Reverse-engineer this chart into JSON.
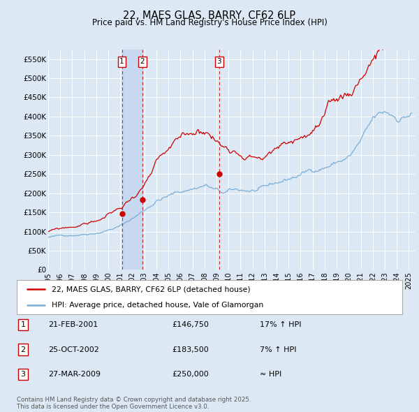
{
  "title": "22, MAES GLAS, BARRY, CF62 6LP",
  "subtitle": "Price paid vs. HM Land Registry's House Price Index (HPI)",
  "bg_color": "#dce9f5",
  "plot_bg_color": "#dce9f5",
  "grid_color": "#ffffff",
  "red_line_color": "#cc0000",
  "blue_line_color": "#7aaed6",
  "shade_color": "#c5d8f0",
  "ylim": [
    0,
    575000
  ],
  "yticks": [
    0,
    50000,
    100000,
    150000,
    200000,
    250000,
    300000,
    350000,
    400000,
    450000,
    500000,
    550000
  ],
  "ytick_labels": [
    "£0",
    "£50K",
    "£100K",
    "£150K",
    "£200K",
    "£250K",
    "£300K",
    "£350K",
    "£400K",
    "£450K",
    "£500K",
    "£550K"
  ],
  "xlim": [
    1995.0,
    2025.5
  ],
  "xticks": [
    1995,
    1996,
    1997,
    1998,
    1999,
    2000,
    2001,
    2002,
    2003,
    2004,
    2005,
    2006,
    2007,
    2008,
    2009,
    2010,
    2011,
    2012,
    2013,
    2014,
    2015,
    2016,
    2017,
    2018,
    2019,
    2020,
    2021,
    2022,
    2023,
    2024,
    2025
  ],
  "transactions": [
    {
      "num": 1,
      "date": "21-FEB-2001",
      "price": 146750,
      "hpi_note": "17% ↑ HPI",
      "x_year": 2001.13
    },
    {
      "num": 2,
      "date": "25-OCT-2002",
      "price": 183500,
      "hpi_note": "7% ↑ HPI",
      "x_year": 2002.82
    },
    {
      "num": 3,
      "date": "27-MAR-2009",
      "price": 250000,
      "hpi_note": "≈ HPI",
      "x_year": 2009.23
    }
  ],
  "legend_entries": [
    "22, MAES GLAS, BARRY, CF62 6LP (detached house)",
    "HPI: Average price, detached house, Vale of Glamorgan"
  ],
  "footer": "Contains HM Land Registry data © Crown copyright and database right 2025.\nThis data is licensed under the Open Government Licence v3.0."
}
